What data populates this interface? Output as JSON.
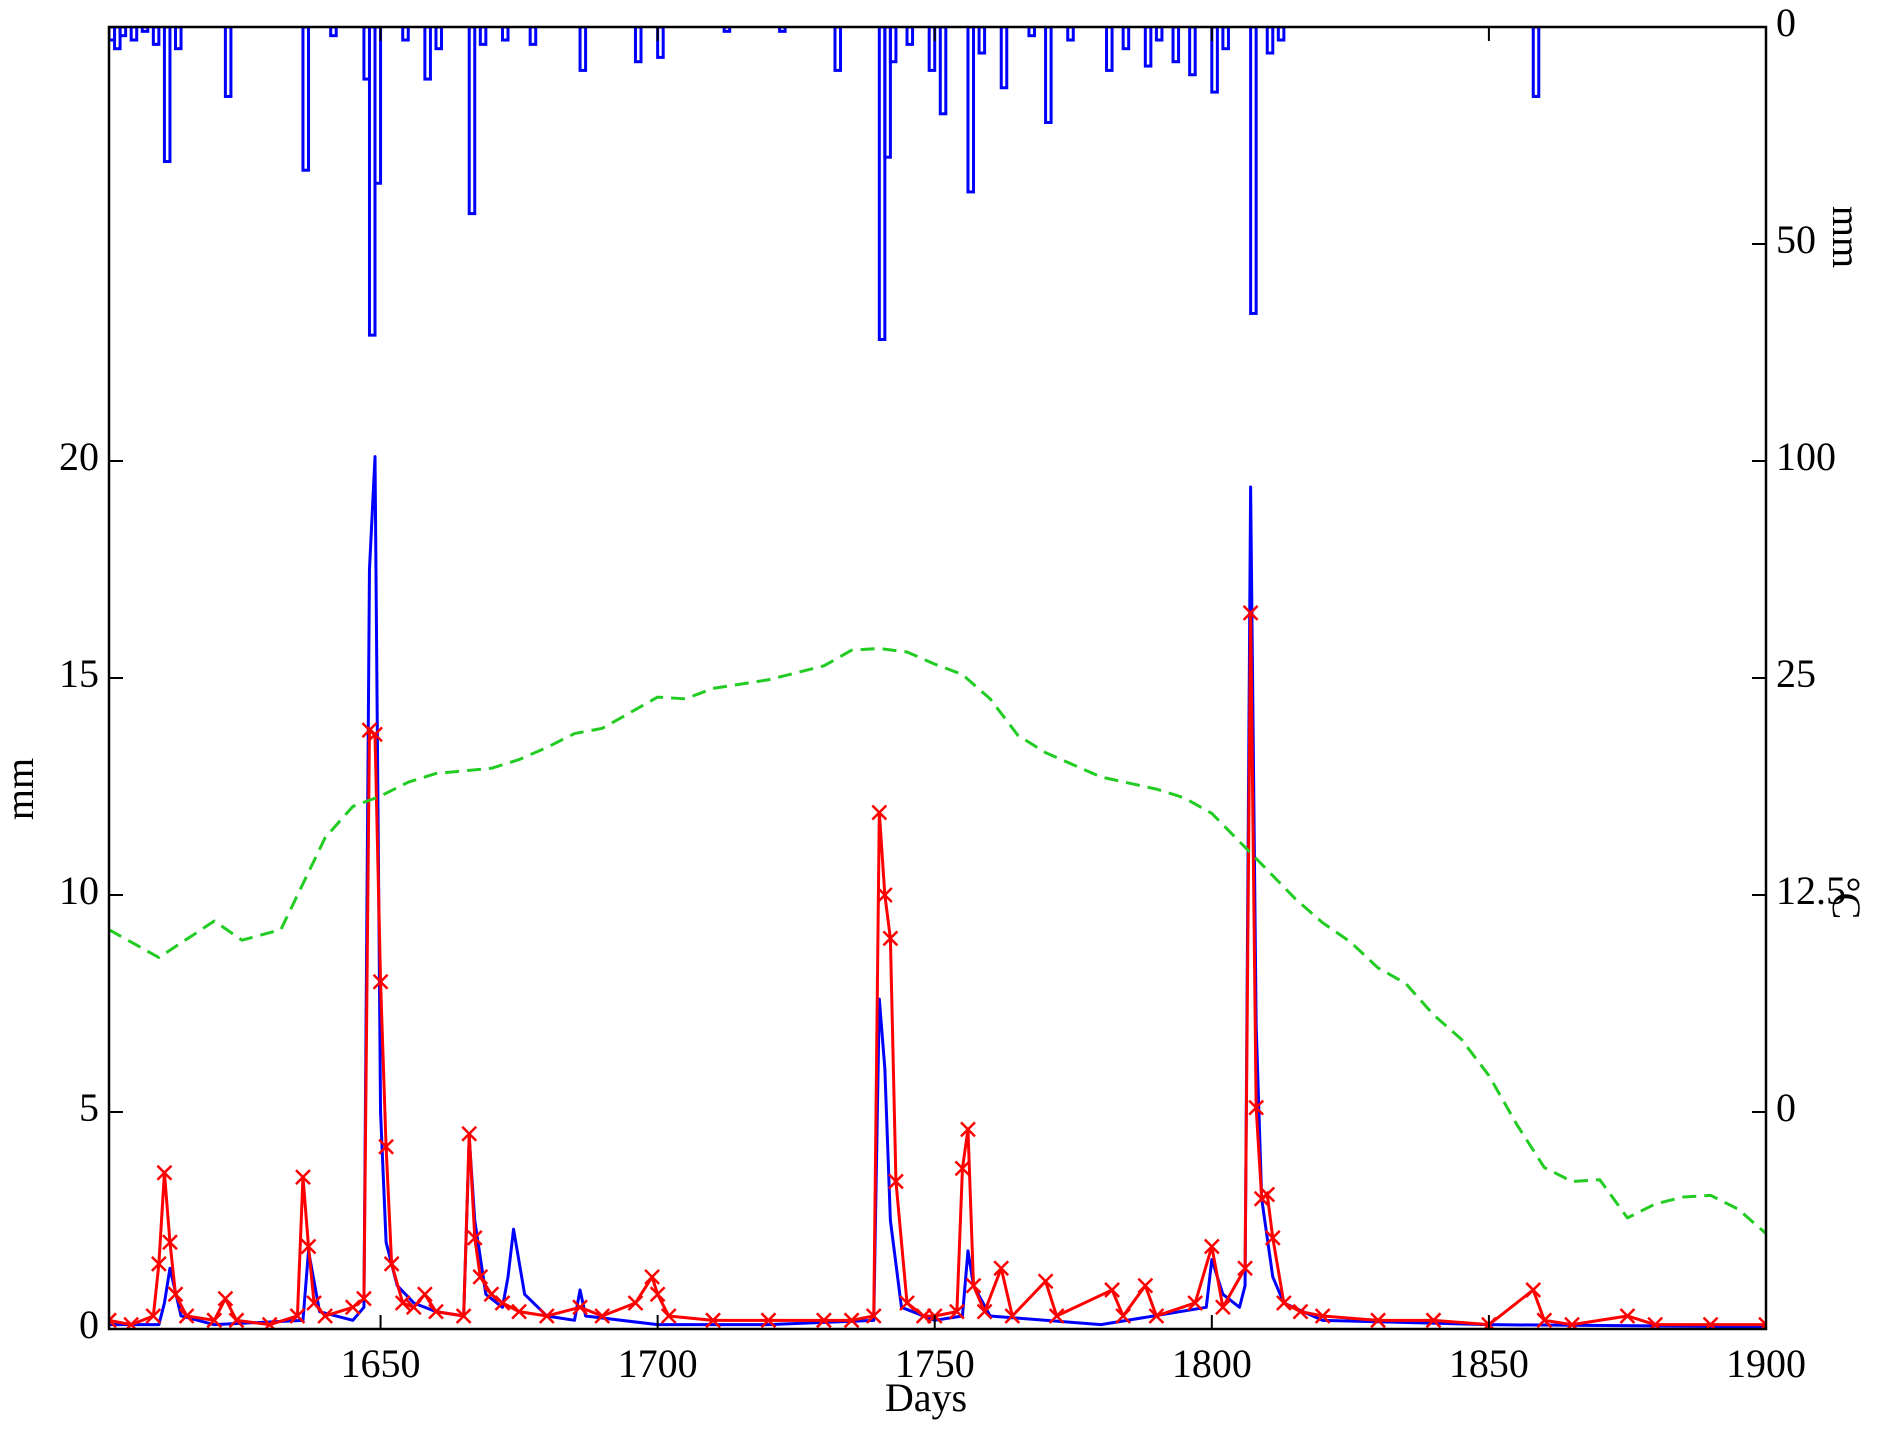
{
  "chart_data": {
    "type": "line",
    "xlabel": "Days",
    "ylabel": "mm",
    "y2label": "mm",
    "y3label": "°C",
    "xlim": [
      1601,
      1900
    ],
    "xticks": [
      1650,
      1700,
      1750,
      1800,
      1850,
      1900
    ],
    "ylim": [
      0,
      30
    ],
    "yticks": [
      0,
      5,
      10,
      15,
      20
    ],
    "y2lim": [
      300,
      0
    ],
    "y2ticks": [
      0,
      50,
      100
    ],
    "y3lim": [
      -12.5,
      62.5
    ],
    "y3ticks": [
      0,
      12.5,
      25
    ],
    "series": [
      {
        "type": "step",
        "axis": "y2",
        "color": "#0000ff",
        "x": [
          1601,
          1602,
          1603,
          1605,
          1607,
          1609,
          1611,
          1613,
          1622,
          1636,
          1641,
          1647,
          1648,
          1649,
          1654,
          1658,
          1660,
          1666,
          1668,
          1672,
          1677,
          1686,
          1696,
          1700,
          1712,
          1722,
          1732,
          1740,
          1741,
          1742,
          1745,
          1749,
          1751,
          1756,
          1758,
          1762,
          1767,
          1770,
          1774,
          1781,
          1784,
          1788,
          1790,
          1793,
          1796,
          1800,
          1802,
          1807,
          1810,
          1812,
          1858
        ],
        "values": [
          3,
          5,
          2,
          3,
          1,
          4,
          31,
          5,
          16,
          33,
          2,
          12,
          71,
          36,
          3,
          12,
          5,
          43,
          4,
          3,
          4,
          10,
          8,
          7,
          1,
          1,
          10,
          72,
          30,
          8,
          4,
          10,
          20,
          38,
          6,
          14,
          2,
          22,
          3,
          10,
          5,
          9,
          3,
          8,
          11,
          15,
          5,
          66,
          6,
          3,
          16
        ]
      },
      {
        "type": "line",
        "axis": "y",
        "color": "#0000ff",
        "x": [
          1601,
          1610,
          1611,
          1612,
          1614,
          1620,
          1636,
          1637,
          1639,
          1645,
          1647,
          1648,
          1649,
          1650,
          1651,
          1653,
          1656,
          1660,
          1665,
          1666,
          1667,
          1669,
          1672,
          1673,
          1674,
          1676,
          1680,
          1685,
          1686,
          1687,
          1700,
          1720,
          1739,
          1740,
          1741,
          1742,
          1744,
          1750,
          1755,
          1756,
          1757,
          1760,
          1780,
          1799,
          1800,
          1802,
          1805,
          1806,
          1807,
          1808,
          1809,
          1811,
          1813,
          1820,
          1850,
          1900
        ],
        "values": [
          0.1,
          0.1,
          0.6,
          1.4,
          0.3,
          0.1,
          0.2,
          1.8,
          0.4,
          0.2,
          0.5,
          17.5,
          20.1,
          5.0,
          2.0,
          1.0,
          0.6,
          0.4,
          0.3,
          4.4,
          2.5,
          0.8,
          0.5,
          1.2,
          2.3,
          0.8,
          0.3,
          0.2,
          0.9,
          0.3,
          0.1,
          0.1,
          0.2,
          7.6,
          6.0,
          2.5,
          0.5,
          0.2,
          0.3,
          1.8,
          1.0,
          0.3,
          0.1,
          0.5,
          1.6,
          0.8,
          0.5,
          1.0,
          19.4,
          7.0,
          3.0,
          1.2,
          0.6,
          0.2,
          0.1,
          0.05
        ]
      },
      {
        "type": "line",
        "axis": "y",
        "color": "#ff0000",
        "marker": "x",
        "x": [
          1601,
          1605,
          1609,
          1610,
          1611,
          1612,
          1613,
          1615,
          1620,
          1622,
          1624,
          1630,
          1635,
          1636,
          1637,
          1638,
          1640,
          1645,
          1647,
          1648,
          1649,
          1650,
          1651,
          1652,
          1654,
          1656,
          1658,
          1660,
          1665,
          1666,
          1667,
          1668,
          1670,
          1672,
          1675,
          1680,
          1686,
          1690,
          1696,
          1699,
          1700,
          1702,
          1710,
          1720,
          1730,
          1735,
          1739,
          1740,
          1741,
          1742,
          1743,
          1745,
          1748,
          1750,
          1754,
          1755,
          1756,
          1757,
          1759,
          1762,
          1764,
          1770,
          1772,
          1782,
          1784,
          1788,
          1790,
          1797,
          1800,
          1802,
          1806,
          1807,
          1808,
          1809,
          1810,
          1811,
          1813,
          1816,
          1820,
          1830,
          1840,
          1850,
          1858,
          1860,
          1865,
          1875,
          1880,
          1890,
          1900
        ],
        "values": [
          0.2,
          0.1,
          0.3,
          1.5,
          3.6,
          2.0,
          0.8,
          0.3,
          0.2,
          0.7,
          0.2,
          0.1,
          0.3,
          3.5,
          1.9,
          0.6,
          0.3,
          0.5,
          0.7,
          13.8,
          13.7,
          8.0,
          4.2,
          1.5,
          0.6,
          0.5,
          0.8,
          0.4,
          0.3,
          4.5,
          2.1,
          1.2,
          0.8,
          0.6,
          0.4,
          0.3,
          0.5,
          0.3,
          0.6,
          1.2,
          0.8,
          0.3,
          0.2,
          0.2,
          0.2,
          0.2,
          0.3,
          11.9,
          10.0,
          9.0,
          3.4,
          0.6,
          0.3,
          0.3,
          0.4,
          3.7,
          4.6,
          1.0,
          0.4,
          1.4,
          0.3,
          1.1,
          0.3,
          0.9,
          0.3,
          1.0,
          0.3,
          0.6,
          1.9,
          0.5,
          1.4,
          16.5,
          5.1,
          3.0,
          3.1,
          2.1,
          0.6,
          0.4,
          0.3,
          0.2,
          0.2,
          0.1,
          0.9,
          0.2,
          0.1,
          0.3,
          0.1,
          0.1,
          0.1
        ]
      },
      {
        "type": "line",
        "axis": "y3",
        "color": "#22cc22",
        "line_style": "dashed",
        "x": [
          1601,
          1610,
          1620,
          1625,
          1632,
          1640,
          1645,
          1650,
          1655,
          1660,
          1670,
          1675,
          1680,
          1685,
          1690,
          1700,
          1705,
          1710,
          1720,
          1730,
          1735,
          1740,
          1745,
          1750,
          1755,
          1760,
          1765,
          1770,
          1780,
          1790,
          1795,
          1800,
          1808,
          1815,
          1820,
          1825,
          1830,
          1835,
          1840,
          1845,
          1850,
          1855,
          1860,
          1865,
          1870,
          1875,
          1880,
          1885,
          1890,
          1895,
          1900
        ],
        "values": [
          10.5,
          8.9,
          11.0,
          9.9,
          10.5,
          15.8,
          17.6,
          18.2,
          19.0,
          19.5,
          19.8,
          20.3,
          21.0,
          21.8,
          22.1,
          23.9,
          23.8,
          24.4,
          24.9,
          25.7,
          26.6,
          26.7,
          26.5,
          25.8,
          25.2,
          23.8,
          21.7,
          20.7,
          19.3,
          18.6,
          18.1,
          17.2,
          14.6,
          12.3,
          10.9,
          9.8,
          8.3,
          7.4,
          5.6,
          4.2,
          2.1,
          -0.7,
          -3.2,
          -4.0,
          -3.9,
          -6.1,
          -5.3,
          -4.9,
          -4.8,
          -5.6,
          -7.0
        ]
      }
    ]
  }
}
